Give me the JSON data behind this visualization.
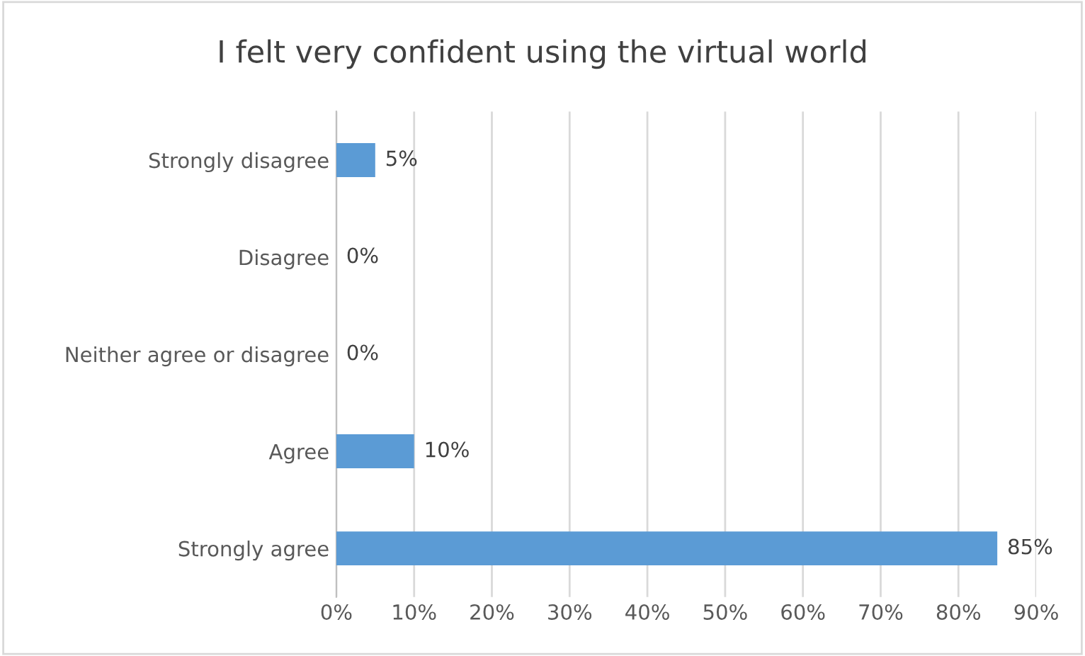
{
  "chart_data": {
    "type": "bar",
    "orientation": "horizontal",
    "title": "I felt very confident using the virtual world",
    "categories": [
      "Strongly disagree",
      "Disagree",
      "Neither agree or disagree",
      "Agree",
      "Strongly agree"
    ],
    "values": [
      5,
      0,
      0,
      10,
      85
    ],
    "color": "#5b9bd5",
    "value_labels": [
      "5%",
      "0%",
      "0%",
      "10%",
      "85%"
    ],
    "xlim": [
      0,
      90
    ],
    "xticks": [
      {
        "value": 0,
        "label": "0%"
      },
      {
        "value": 10,
        "label": "10%"
      },
      {
        "value": 20,
        "label": "20%"
      },
      {
        "value": 30,
        "label": "30%"
      },
      {
        "value": 40,
        "label": "40%"
      },
      {
        "value": 50,
        "label": "50%"
      },
      {
        "value": 60,
        "label": "60%"
      },
      {
        "value": 70,
        "label": "70%"
      },
      {
        "value": 80,
        "label": "80%"
      },
      {
        "value": 90,
        "label": "90%"
      }
    ],
    "grid": "x",
    "legend": false
  }
}
